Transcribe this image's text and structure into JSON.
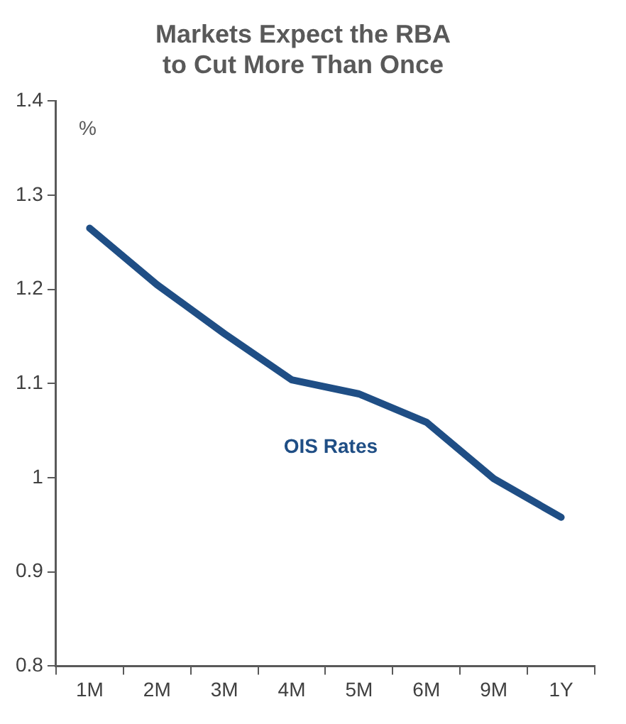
{
  "chart_data": {
    "type": "line",
    "title": "Markets Expect the RBA\nto Cut More Than Once",
    "ylabel": "%",
    "categories": [
      "1M",
      "2M",
      "3M",
      "4M",
      "5M",
      "6M",
      "9M",
      "1Y"
    ],
    "series": [
      {
        "name": "OIS Rates",
        "color": "#1f4e85",
        "values": [
          1.265,
          1.205,
          1.153,
          1.104,
          1.089,
          1.059,
          0.999,
          0.958
        ]
      }
    ],
    "ylim": [
      0.8,
      1.4
    ],
    "yticks": [
      0.8,
      0.9,
      1,
      1.1,
      1.2,
      1.3,
      1.4
    ],
    "grid": false,
    "legend": false,
    "marker": "none",
    "line_style": "solid"
  }
}
